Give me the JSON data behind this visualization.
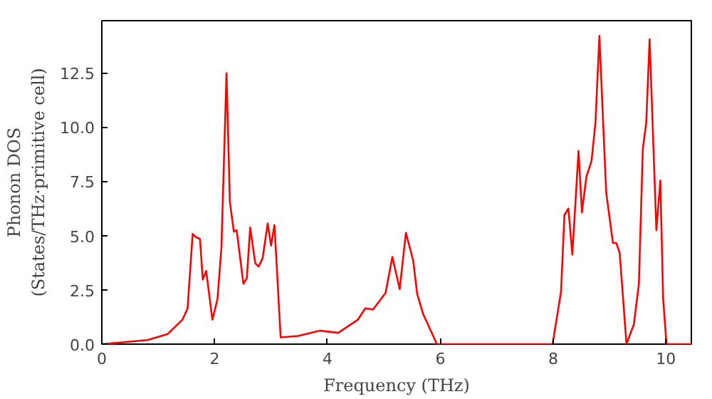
{
  "chart_data": {
    "type": "line",
    "xlabel": "Frequency (THz)",
    "ylabel": "Phonon DOS\n(States/THz·primitive cell)",
    "xlim": [
      0,
      10.45
    ],
    "ylim": [
      0,
      14.9
    ],
    "xticks": [
      0,
      2,
      4,
      6,
      8,
      10
    ],
    "yticks": [
      {
        "value": 0,
        "label": "0.0"
      },
      {
        "value": 2.5,
        "label": "2.5"
      },
      {
        "value": 5,
        "label": "5.0"
      },
      {
        "value": 7.5,
        "label": "7.5"
      },
      {
        "value": 10,
        "label": "10.0"
      },
      {
        "value": 12.5,
        "label": "12.5"
      }
    ],
    "grid": false,
    "line_style": "solid",
    "series": [
      {
        "color": "#ff0000",
        "x": [
          0,
          0.81,
          1.17,
          1.43,
          1.52,
          1.61,
          1.66,
          1.74,
          1.79,
          1.85,
          1.96,
          2.05,
          2.12,
          2.21,
          2.27,
          2.34,
          2.39,
          2.51,
          2.57,
          2.63,
          2.72,
          2.78,
          2.85,
          2.94,
          3.0,
          3.06,
          3.17,
          3.48,
          3.87,
          4.19,
          4.54,
          4.67,
          4.81,
          5.03,
          5.15,
          5.28,
          5.39,
          5.52,
          5.59,
          5.7,
          5.94,
          7.99,
          8.14,
          8.2,
          8.27,
          8.34,
          8.45,
          8.51,
          8.59,
          8.68,
          8.75,
          8.82,
          8.94,
          9.06,
          9.12,
          9.18,
          9.3,
          9.43,
          9.52,
          9.59,
          9.65,
          9.71,
          9.83,
          9.9,
          9.95,
          10.01,
          10.45
        ],
        "values": [
          0,
          0.19,
          0.47,
          1.13,
          1.65,
          5.08,
          4.94,
          4.85,
          2.97,
          3.37,
          1.13,
          2.07,
          4.44,
          12.48,
          6.55,
          5.18,
          5.25,
          2.78,
          3.03,
          5.37,
          3.72,
          3.58,
          3.95,
          5.56,
          4.54,
          5.49,
          0.31,
          0.38,
          0.62,
          0.52,
          1.13,
          1.65,
          1.6,
          2.36,
          4.02,
          2.54,
          5.13,
          3.84,
          2.31,
          1.36,
          0,
          0,
          2.42,
          5.95,
          6.25,
          4.12,
          8.9,
          6.07,
          7.72,
          8.43,
          10.2,
          14.2,
          7.0,
          4.66,
          4.66,
          4.19,
          0,
          0.9,
          2.78,
          9.02,
          10.2,
          14.04,
          5.25,
          7.54,
          2.07,
          0,
          0
        ]
      }
    ]
  }
}
